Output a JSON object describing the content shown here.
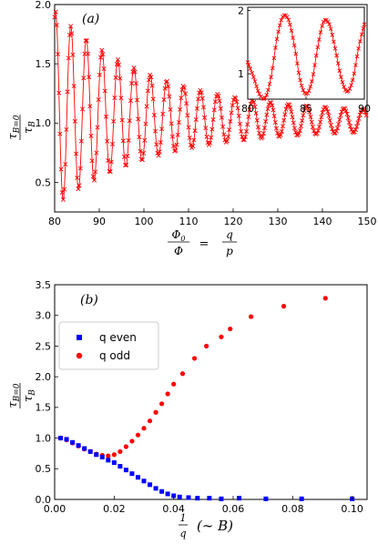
{
  "chart_data": [
    {
      "type": "line",
      "panel_label": "(a)",
      "ylabel": "τ_{B=0} / τ_B",
      "xlabel": "Φ0/Φ = q/p",
      "xlim": [
        80,
        150
      ],
      "ylim": [
        0.25,
        2.0
      ],
      "xticks": [
        "80",
        "90",
        "100",
        "110",
        "120",
        "130",
        "140",
        "150"
      ],
      "yticks": [
        "0.5",
        "1.0",
        "1.5",
        "2.0"
      ],
      "grid": false,
      "series": [
        {
          "color": "#ff0000",
          "marker": "x",
          "envelope_max_start": 1.95,
          "envelope_min_start": 0.3,
          "envelope_max_end": 1.08,
          "envelope_min_end": 0.95,
          "period_start": 3.4,
          "period_end": 4.3
        }
      ],
      "inset": {
        "type": "line",
        "xlim": [
          80,
          90
        ],
        "ylim": [
          0.6,
          2.05
        ],
        "xticks": [
          "80",
          "85",
          "90"
        ],
        "yticks": [
          "1",
          "2"
        ],
        "series": [
          {
            "color": "#ff0000",
            "marker": "x",
            "points": [
              [
                80,
                1.18
              ],
              [
                80.5,
                0.95
              ],
              [
                81,
                0.68
              ],
              [
                81.5,
                0.62
              ],
              [
                82,
                0.95
              ],
              [
                82.5,
                1.55
              ],
              [
                83,
                1.9
              ],
              [
                83.5,
                1.85
              ],
              [
                84,
                1.45
              ],
              [
                84.5,
                0.9
              ],
              [
                85,
                0.68
              ],
              [
                85.5,
                0.88
              ],
              [
                86,
                1.42
              ],
              [
                86.5,
                1.82
              ],
              [
                87,
                1.78
              ],
              [
                87.5,
                1.4
              ],
              [
                88,
                0.95
              ],
              [
                88.5,
                0.72
              ],
              [
                89,
                0.9
              ],
              [
                89.5,
                1.4
              ],
              [
                90,
                1.78
              ]
            ]
          }
        ]
      }
    },
    {
      "type": "scatter",
      "panel_label": "(b)",
      "ylabel": "τ_{B=0} / τ_B",
      "xlabel": "1/q (∼ B)",
      "xlim": [
        0.0,
        0.105
      ],
      "ylim": [
        0.0,
        3.5
      ],
      "xticks": [
        "0.00",
        "0.02",
        "0.04",
        "0.06",
        "0.08",
        "0.10"
      ],
      "yticks": [
        "0.0",
        "0.5",
        "1.0",
        "1.5",
        "2.0",
        "2.5",
        "3.0",
        "3.5"
      ],
      "grid": false,
      "legend_position": "upper-left",
      "series": [
        {
          "name": "q even",
          "color": "#0000ff",
          "marker": "square",
          "points": [
            [
              0.002,
              1.0
            ],
            [
              0.004,
              0.98
            ],
            [
              0.006,
              0.93
            ],
            [
              0.008,
              0.88
            ],
            [
              0.01,
              0.83
            ],
            [
              0.012,
              0.78
            ],
            [
              0.014,
              0.73
            ],
            [
              0.016,
              0.69
            ],
            [
              0.018,
              0.64
            ],
            [
              0.02,
              0.6
            ],
            [
              0.022,
              0.54
            ],
            [
              0.024,
              0.48
            ],
            [
              0.026,
              0.42
            ],
            [
              0.028,
              0.36
            ],
            [
              0.03,
              0.3
            ],
            [
              0.032,
              0.24
            ],
            [
              0.034,
              0.18
            ],
            [
              0.036,
              0.13
            ],
            [
              0.038,
              0.09
            ],
            [
              0.04,
              0.06
            ],
            [
              0.042,
              0.04
            ],
            [
              0.045,
              0.03
            ],
            [
              0.048,
              0.02
            ],
            [
              0.052,
              0.02
            ],
            [
              0.056,
              0.01
            ],
            [
              0.062,
              0.02
            ],
            [
              0.071,
              0.01
            ],
            [
              0.083,
              0.01
            ],
            [
              0.1,
              0.01
            ]
          ]
        },
        {
          "name": "q odd",
          "color": "#ff0000",
          "marker": "circle",
          "points": [
            [
              0.002,
              1.0
            ],
            [
              0.004,
              0.97
            ],
            [
              0.006,
              0.92
            ],
            [
              0.008,
              0.87
            ],
            [
              0.01,
              0.82
            ],
            [
              0.012,
              0.78
            ],
            [
              0.014,
              0.74
            ],
            [
              0.016,
              0.72
            ],
            [
              0.018,
              0.71
            ],
            [
              0.02,
              0.73
            ],
            [
              0.022,
              0.78
            ],
            [
              0.024,
              0.86
            ],
            [
              0.026,
              0.95
            ],
            [
              0.028,
              1.05
            ],
            [
              0.03,
              1.16
            ],
            [
              0.032,
              1.28
            ],
            [
              0.034,
              1.42
            ],
            [
              0.036,
              1.56
            ],
            [
              0.038,
              1.72
            ],
            [
              0.04,
              1.88
            ],
            [
              0.043,
              2.05
            ],
            [
              0.047,
              2.3
            ],
            [
              0.051,
              2.5
            ],
            [
              0.056,
              2.65
            ],
            [
              0.059,
              2.78
            ],
            [
              0.066,
              2.98
            ],
            [
              0.077,
              3.15
            ],
            [
              0.091,
              3.28
            ]
          ]
        }
      ]
    }
  ]
}
